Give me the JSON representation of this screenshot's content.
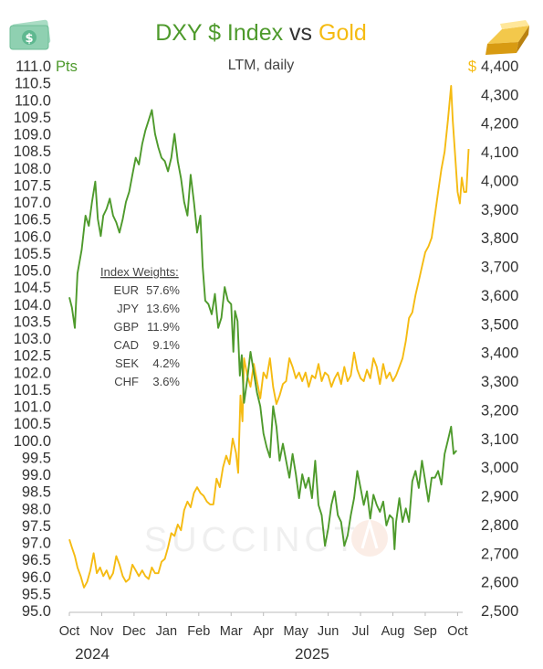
{
  "colors": {
    "dxy": "#4e9a2c",
    "gold": "#f5bb12",
    "text": "#333333"
  },
  "icons": {
    "left": "dollar-banknote-icon",
    "right": "gold-bar-icon"
  },
  "watermark": "SUCCINCT",
  "chart_data": {
    "type": "line",
    "title_parts": [
      {
        "text": "DXY $ Index",
        "role": "dxy"
      },
      {
        "text": " vs ",
        "role": "text"
      },
      {
        "text": "Gold",
        "role": "gold"
      }
    ],
    "subtitle": "LTM, daily",
    "y_left": {
      "unit": "Pts",
      "range": [
        95.0,
        111.0
      ],
      "step": 0.5,
      "ticks": [
        "95.0",
        "95.5",
        "96.0",
        "96.5",
        "97.0",
        "97.5",
        "98.0",
        "98.5",
        "99.0",
        "99.5",
        "100.0",
        "100.5",
        "101.0",
        "101.5",
        "102.0",
        "102.5",
        "103.0",
        "103.5",
        "104.0",
        "104.5",
        "105.0",
        "105.5",
        "106.0",
        "106.5",
        "107.0",
        "107.5",
        "108.0",
        "108.5",
        "109.0",
        "109.5",
        "110.0",
        "110.5",
        "111.0"
      ]
    },
    "y_right": {
      "unit": "$",
      "range": [
        2500,
        4400
      ],
      "step": 100,
      "ticks": [
        "2,500",
        "2,600",
        "2,700",
        "2,800",
        "2,900",
        "3,000",
        "3,100",
        "3,200",
        "3,300",
        "3,400",
        "3,500",
        "3,600",
        "3,700",
        "3,800",
        "3,900",
        "4,000",
        "4,100",
        "4,200",
        "4,300",
        "4,400"
      ]
    },
    "x_months": [
      "Oct",
      "Nov",
      "Dec",
      "Jan",
      "Feb",
      "Mar",
      "Apr",
      "May",
      "Jun",
      "Jul",
      "Aug",
      "Sep",
      "Oct"
    ],
    "x_years": [
      {
        "label": "2024",
        "month_index": 0
      },
      {
        "label": "2025",
        "month_index": 7.5
      }
    ],
    "x_range_months": [
      0,
      12.4
    ],
    "annotation": {
      "title": "Index Weights:",
      "rows": [
        {
          "currency": "EUR",
          "weight": "57.6%"
        },
        {
          "currency": "JPY",
          "weight": "13.6%"
        },
        {
          "currency": "GBP",
          "weight": "11.9%"
        },
        {
          "currency": "CAD",
          "weight": "9.1%"
        },
        {
          "currency": "SEK",
          "weight": "4.2%"
        },
        {
          "currency": "CHF",
          "weight": "3.6%"
        }
      ]
    },
    "series": [
      {
        "name": "DXY $ Index",
        "axis": "left",
        "color_key": "dxy",
        "points": [
          [
            0,
            104.2
          ],
          [
            0.08,
            103.9
          ],
          [
            0.17,
            103.3
          ],
          [
            0.25,
            104.9
          ],
          [
            0.38,
            105.6
          ],
          [
            0.5,
            106.6
          ],
          [
            0.6,
            106.3
          ],
          [
            0.7,
            107.0
          ],
          [
            0.8,
            107.6
          ],
          [
            0.88,
            106.5
          ],
          [
            0.97,
            106.0
          ],
          [
            1.05,
            106.6
          ],
          [
            1.15,
            106.8
          ],
          [
            1.25,
            107.1
          ],
          [
            1.35,
            106.6
          ],
          [
            1.45,
            106.4
          ],
          [
            1.55,
            106.1
          ],
          [
            1.65,
            106.5
          ],
          [
            1.75,
            107.0
          ],
          [
            1.85,
            107.3
          ],
          [
            1.95,
            107.8
          ],
          [
            2.05,
            108.3
          ],
          [
            2.15,
            108.1
          ],
          [
            2.25,
            108.7
          ],
          [
            2.35,
            109.1
          ],
          [
            2.45,
            109.4
          ],
          [
            2.55,
            109.7
          ],
          [
            2.65,
            109.0
          ],
          [
            2.75,
            108.6
          ],
          [
            2.85,
            108.3
          ],
          [
            2.95,
            108.2
          ],
          [
            3.05,
            107.9
          ],
          [
            3.15,
            108.3
          ],
          [
            3.25,
            109.0
          ],
          [
            3.35,
            108.2
          ],
          [
            3.45,
            107.7
          ],
          [
            3.55,
            107.0
          ],
          [
            3.65,
            106.6
          ],
          [
            3.75,
            107.8
          ],
          [
            3.85,
            107.0
          ],
          [
            3.95,
            106.1
          ],
          [
            4.05,
            106.6
          ],
          [
            4.12,
            105.1
          ],
          [
            4.2,
            104.1
          ],
          [
            4.3,
            104.0
          ],
          [
            4.4,
            103.7
          ],
          [
            4.5,
            104.3
          ],
          [
            4.6,
            103.3
          ],
          [
            4.7,
            103.6
          ],
          [
            4.8,
            104.5
          ],
          [
            4.9,
            104.1
          ],
          [
            5.0,
            104.0
          ],
          [
            5.07,
            102.6
          ],
          [
            5.12,
            103.8
          ],
          [
            5.2,
            103.5
          ],
          [
            5.27,
            101.9
          ],
          [
            5.33,
            102.5
          ],
          [
            5.4,
            101.1
          ],
          [
            5.5,
            101.8
          ],
          [
            5.6,
            102.6
          ],
          [
            5.7,
            102.0
          ],
          [
            5.8,
            101.4
          ],
          [
            5.9,
            101.0
          ],
          [
            6.0,
            100.2
          ],
          [
            6.1,
            99.8
          ],
          [
            6.2,
            99.5
          ],
          [
            6.3,
            101.0
          ],
          [
            6.4,
            100.4
          ],
          [
            6.5,
            99.4
          ],
          [
            6.6,
            99.9
          ],
          [
            6.7,
            99.4
          ],
          [
            6.8,
            98.9
          ],
          [
            6.9,
            99.6
          ],
          [
            7.0,
            99.0
          ],
          [
            7.1,
            98.3
          ],
          [
            7.2,
            99.0
          ],
          [
            7.3,
            98.6
          ],
          [
            7.4,
            98.9
          ],
          [
            7.5,
            98.3
          ],
          [
            7.6,
            99.4
          ],
          [
            7.7,
            98.1
          ],
          [
            7.8,
            97.8
          ],
          [
            7.9,
            96.9
          ],
          [
            8.0,
            97.4
          ],
          [
            8.1,
            98.1
          ],
          [
            8.2,
            98.5
          ],
          [
            8.3,
            97.8
          ],
          [
            8.4,
            97.6
          ],
          [
            8.5,
            96.9
          ],
          [
            8.6,
            97.2
          ],
          [
            8.7,
            97.8
          ],
          [
            8.8,
            98.3
          ],
          [
            8.9,
            99.1
          ],
          [
            9.0,
            98.6
          ],
          [
            9.1,
            98.1
          ],
          [
            9.2,
            98.5
          ],
          [
            9.3,
            97.7
          ],
          [
            9.4,
            98.4
          ],
          [
            9.5,
            98.1
          ],
          [
            9.6,
            97.9
          ],
          [
            9.7,
            98.2
          ],
          [
            9.8,
            97.5
          ],
          [
            9.9,
            97.8
          ],
          [
            10.0,
            97.7
          ],
          [
            10.05,
            96.8
          ],
          [
            10.1,
            97.6
          ],
          [
            10.2,
            98.3
          ],
          [
            10.3,
            97.6
          ],
          [
            10.4,
            98.0
          ],
          [
            10.5,
            97.6
          ],
          [
            10.6,
            98.8
          ],
          [
            10.7,
            99.1
          ],
          [
            10.8,
            98.6
          ],
          [
            10.9,
            99.4
          ],
          [
            11.0,
            98.8
          ],
          [
            11.1,
            98.2
          ],
          [
            11.2,
            98.9
          ],
          [
            11.3,
            98.9
          ],
          [
            11.4,
            99.1
          ],
          [
            11.5,
            98.7
          ],
          [
            11.6,
            99.6
          ],
          [
            11.7,
            100.0
          ],
          [
            11.8,
            100.4
          ],
          [
            11.88,
            99.6
          ],
          [
            11.97,
            99.7
          ]
        ]
      },
      {
        "name": "Gold",
        "axis": "right",
        "color_key": "gold",
        "points": [
          [
            0,
            2748
          ],
          [
            0.08,
            2720
          ],
          [
            0.17,
            2690
          ],
          [
            0.25,
            2650
          ],
          [
            0.35,
            2620
          ],
          [
            0.45,
            2580
          ],
          [
            0.55,
            2600
          ],
          [
            0.65,
            2640
          ],
          [
            0.75,
            2700
          ],
          [
            0.85,
            2630
          ],
          [
            0.95,
            2650
          ],
          [
            1.05,
            2620
          ],
          [
            1.15,
            2640
          ],
          [
            1.25,
            2610
          ],
          [
            1.35,
            2630
          ],
          [
            1.45,
            2690
          ],
          [
            1.55,
            2660
          ],
          [
            1.65,
            2620
          ],
          [
            1.75,
            2600
          ],
          [
            1.85,
            2610
          ],
          [
            1.95,
            2660
          ],
          [
            2.05,
            2640
          ],
          [
            2.15,
            2620
          ],
          [
            2.25,
            2640
          ],
          [
            2.35,
            2620
          ],
          [
            2.45,
            2610
          ],
          [
            2.55,
            2650
          ],
          [
            2.65,
            2630
          ],
          [
            2.75,
            2630
          ],
          [
            2.85,
            2670
          ],
          [
            2.95,
            2680
          ],
          [
            3.05,
            2720
          ],
          [
            3.15,
            2770
          ],
          [
            3.25,
            2760
          ],
          [
            3.35,
            2800
          ],
          [
            3.45,
            2780
          ],
          [
            3.55,
            2850
          ],
          [
            3.65,
            2880
          ],
          [
            3.75,
            2860
          ],
          [
            3.85,
            2910
          ],
          [
            3.95,
            2930
          ],
          [
            4.05,
            2910
          ],
          [
            4.15,
            2900
          ],
          [
            4.25,
            2880
          ],
          [
            4.35,
            2870
          ],
          [
            4.45,
            2870
          ],
          [
            4.55,
            2960
          ],
          [
            4.65,
            2930
          ],
          [
            4.75,
            3000
          ],
          [
            4.85,
            3040
          ],
          [
            4.95,
            3010
          ],
          [
            5.05,
            3100
          ],
          [
            5.15,
            3050
          ],
          [
            5.22,
            2980
          ],
          [
            5.29,
            3250
          ],
          [
            5.35,
            3160
          ],
          [
            5.4,
            3380
          ],
          [
            5.5,
            3320
          ],
          [
            5.6,
            3280
          ],
          [
            5.7,
            3360
          ],
          [
            5.8,
            3300
          ],
          [
            5.9,
            3240
          ],
          [
            6.0,
            3330
          ],
          [
            6.1,
            3310
          ],
          [
            6.2,
            3380
          ],
          [
            6.3,
            3280
          ],
          [
            6.4,
            3220
          ],
          [
            6.5,
            3250
          ],
          [
            6.6,
            3290
          ],
          [
            6.7,
            3300
          ],
          [
            6.8,
            3380
          ],
          [
            6.9,
            3350
          ],
          [
            7.0,
            3310
          ],
          [
            7.1,
            3330
          ],
          [
            7.2,
            3300
          ],
          [
            7.3,
            3330
          ],
          [
            7.4,
            3280
          ],
          [
            7.5,
            3320
          ],
          [
            7.6,
            3310
          ],
          [
            7.7,
            3360
          ],
          [
            7.8,
            3300
          ],
          [
            7.9,
            3330
          ],
          [
            8.0,
            3320
          ],
          [
            8.1,
            3280
          ],
          [
            8.2,
            3310
          ],
          [
            8.3,
            3330
          ],
          [
            8.4,
            3290
          ],
          [
            8.5,
            3350
          ],
          [
            8.6,
            3300
          ],
          [
            8.7,
            3320
          ],
          [
            8.8,
            3400
          ],
          [
            8.9,
            3340
          ],
          [
            9.0,
            3310
          ],
          [
            9.1,
            3300
          ],
          [
            9.2,
            3340
          ],
          [
            9.3,
            3310
          ],
          [
            9.4,
            3380
          ],
          [
            9.5,
            3350
          ],
          [
            9.6,
            3290
          ],
          [
            9.7,
            3360
          ],
          [
            9.8,
            3310
          ],
          [
            9.9,
            3330
          ],
          [
            10.0,
            3300
          ],
          [
            10.1,
            3320
          ],
          [
            10.2,
            3350
          ],
          [
            10.3,
            3380
          ],
          [
            10.4,
            3440
          ],
          [
            10.5,
            3520
          ],
          [
            10.6,
            3540
          ],
          [
            10.7,
            3600
          ],
          [
            10.8,
            3650
          ],
          [
            10.9,
            3700
          ],
          [
            11.0,
            3750
          ],
          [
            11.1,
            3770
          ],
          [
            11.2,
            3800
          ],
          [
            11.3,
            3880
          ],
          [
            11.4,
            3960
          ],
          [
            11.5,
            4040
          ],
          [
            11.6,
            4100
          ],
          [
            11.7,
            4210
          ],
          [
            11.8,
            4330
          ],
          [
            11.85,
            4210
          ],
          [
            11.93,
            4080
          ],
          [
            12.0,
            3960
          ],
          [
            12.07,
            3920
          ],
          [
            12.13,
            4010
          ],
          [
            12.2,
            3960
          ],
          [
            12.27,
            3960
          ],
          [
            12.34,
            4110
          ]
        ]
      }
    ]
  }
}
